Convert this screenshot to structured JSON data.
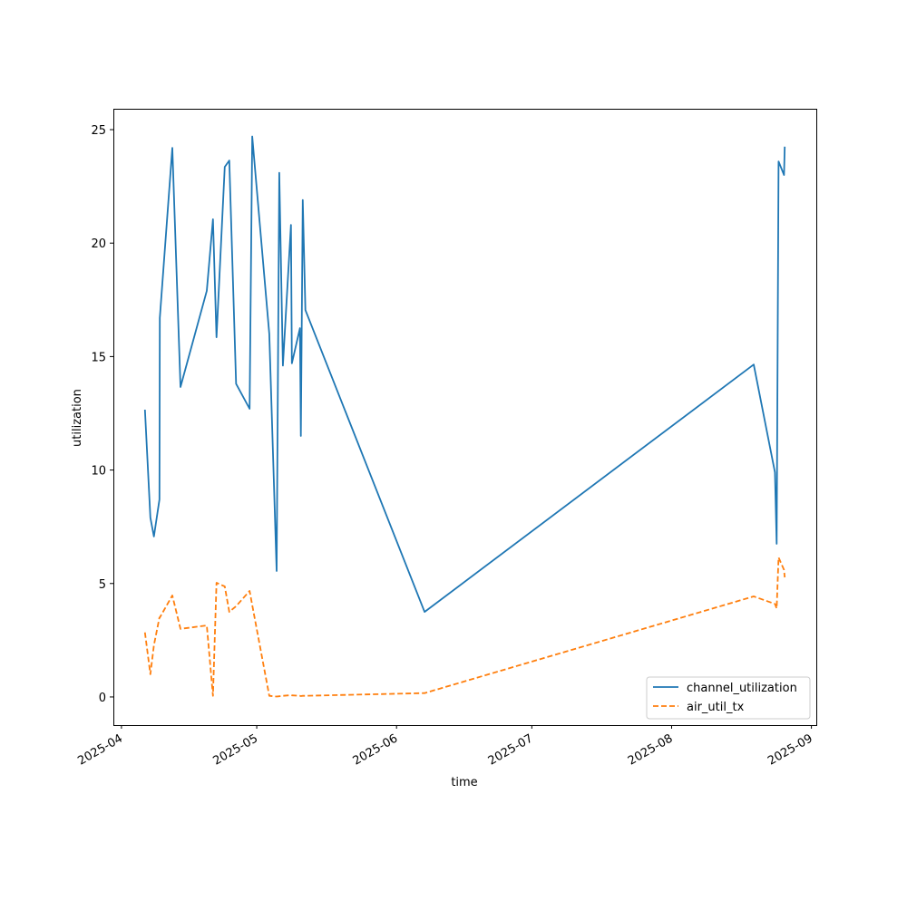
{
  "chart_data": {
    "type": "line",
    "title": "",
    "xlabel": "time",
    "ylabel": "utilization",
    "xlim": [
      "2025-03-30T05:00",
      "2025-09-02T02:00"
    ],
    "ylim": [
      -1.24,
      25.92
    ],
    "x_ticks": [
      "2025-04",
      "2025-05",
      "2025-06",
      "2025-07",
      "2025-08",
      "2025-09"
    ],
    "x_tick_dates": [
      "2025-04-01",
      "2025-05-01",
      "2025-06-01",
      "2025-07-01",
      "2025-08-01",
      "2025-09-01"
    ],
    "y_ticks": [
      0,
      5,
      10,
      15,
      20,
      25
    ],
    "grid": false,
    "legend_position": "lower right",
    "x": [
      "2025-04-06T05:00",
      "2025-04-07T10:00",
      "2025-04-08T05:00",
      "2025-04-09T10:00",
      "2025-04-09T12:00",
      "2025-04-12T07:00",
      "2025-04-14T02:00",
      "2025-04-19T22:00",
      "2025-04-21T07:00",
      "2025-04-22T02:00",
      "2025-04-23T22:00",
      "2025-04-24T22:00",
      "2025-04-26T10:00",
      "2025-04-29T10:00",
      "2025-04-30T00:00",
      "2025-05-03T19:00",
      "2025-05-05T10:00",
      "2025-05-06T00:00",
      "2025-05-06T19:00",
      "2025-05-08T14:00",
      "2025-05-08T19:00",
      "2025-05-10T14:00",
      "2025-05-10T19:00",
      "2025-05-11T05:00",
      "2025-05-11T19:00",
      "2025-06-07T05:00",
      "2025-08-19T05:00",
      "2025-08-23T22:00",
      "2025-08-24T07:00",
      "2025-08-24T17:00",
      "2025-08-25T22:00",
      "2025-08-26T02:00"
    ],
    "series": [
      {
        "name": "channel_utilization",
        "color": "#1f77b4",
        "style": "solid",
        "values": [
          12.66,
          7.9,
          7.07,
          8.7,
          16.7,
          24.2,
          13.66,
          17.9,
          21.05,
          15.85,
          23.36,
          23.64,
          13.8,
          12.7,
          24.7,
          16.0,
          5.55,
          23.1,
          14.6,
          20.8,
          14.7,
          16.25,
          11.5,
          21.9,
          17.05,
          3.75,
          14.65,
          9.9,
          6.75,
          23.6,
          23.0,
          24.25
        ]
      },
      {
        "name": "air_util_tx",
        "color": "#ff7f0e",
        "style": "dashed",
        "values": [
          2.84,
          1.0,
          2.28,
          3.5,
          3.5,
          4.47,
          3.0,
          3.15,
          0.05,
          5.03,
          4.87,
          3.75,
          4.0,
          4.67,
          4.05,
          0.05,
          0.02,
          0.03,
          0.05,
          0.08,
          0.07,
          0.05,
          0.04,
          0.05,
          0.05,
          0.17,
          4.43,
          4.1,
          3.9,
          6.15,
          5.6,
          5.27
        ]
      }
    ]
  }
}
